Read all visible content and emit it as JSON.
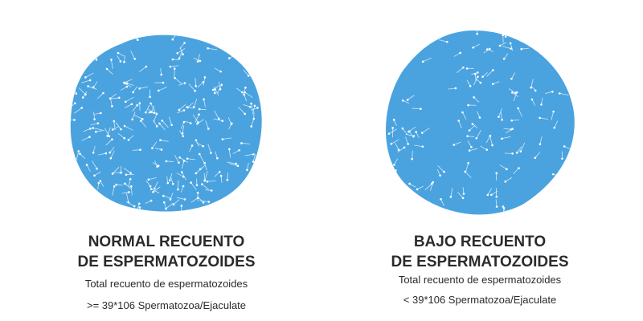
{
  "panels": [
    {
      "title": [
        "NORMAL RECUENTO",
        "DE ESPERMATOZOIDES"
      ],
      "description": [
        "Total recuento de espermatozoides",
        ">= 39*106 Spermatozoa/Ejaculate"
      ]
    },
    {
      "title": [
        "BAJO RECUENTO",
        "DE ESPERMATOZOIDES"
      ],
      "description": [
        "Total recuento de espermatozoides",
        "< 39*106 Spermatozoa/Ejaculate"
      ]
    }
  ]
}
